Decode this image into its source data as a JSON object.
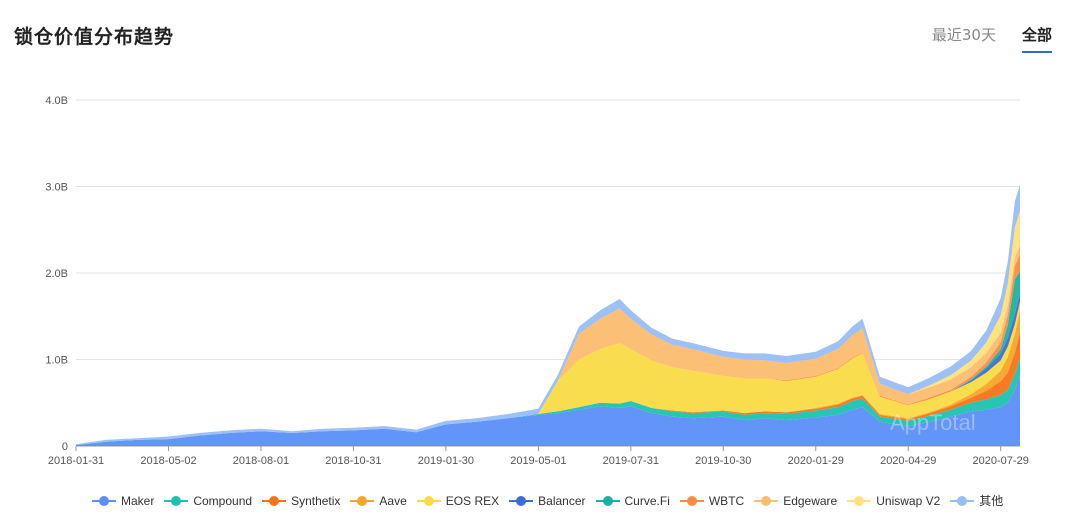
{
  "header": {
    "title": "锁仓价值分布趋势",
    "tabs": [
      {
        "label": "最近30天",
        "active": false
      },
      {
        "label": "全部",
        "active": true
      }
    ]
  },
  "watermark": "AppTotal",
  "chart_data": {
    "type": "area",
    "stacked": true,
    "x": [
      "2018-01-31",
      "2018-03-01",
      "2018-04-01",
      "2018-05-02",
      "2018-06-01",
      "2018-07-01",
      "2018-08-01",
      "2018-09-01",
      "2018-10-01",
      "2018-10-31",
      "2018-12-01",
      "2019-01-01",
      "2019-01-30",
      "2019-03-01",
      "2019-04-01",
      "2019-05-01",
      "2019-05-20",
      "2019-06-10",
      "2019-07-01",
      "2019-07-20",
      "2019-07-31",
      "2019-08-20",
      "2019-09-10",
      "2019-09-30",
      "2019-10-30",
      "2019-11-20",
      "2019-12-10",
      "2019-12-31",
      "2020-01-29",
      "2020-02-20",
      "2020-03-05",
      "2020-03-15",
      "2020-04-01",
      "2020-04-29",
      "2020-05-20",
      "2020-06-10",
      "2020-06-30",
      "2020-07-15",
      "2020-07-29",
      "2020-08-05",
      "2020-08-12",
      "2020-08-17"
    ],
    "series": [
      {
        "name": "Maker",
        "color": "#5b8ff9",
        "values": [
          0.01,
          0.05,
          0.07,
          0.08,
          0.12,
          0.15,
          0.17,
          0.15,
          0.17,
          0.18,
          0.2,
          0.16,
          0.25,
          0.28,
          0.32,
          0.36,
          0.38,
          0.42,
          0.46,
          0.44,
          0.46,
          0.38,
          0.34,
          0.32,
          0.34,
          0.3,
          0.32,
          0.3,
          0.33,
          0.36,
          0.42,
          0.45,
          0.28,
          0.23,
          0.28,
          0.34,
          0.4,
          0.42,
          0.45,
          0.5,
          0.65,
          0.82
        ]
      },
      {
        "name": "Compound",
        "color": "#1cc2b0",
        "values": [
          0,
          0,
          0,
          0,
          0,
          0,
          0,
          0,
          0,
          0,
          0,
          0,
          0,
          0,
          0,
          0.01,
          0.02,
          0.03,
          0.04,
          0.05,
          0.06,
          0.06,
          0.06,
          0.06,
          0.06,
          0.06,
          0.06,
          0.07,
          0.08,
          0.09,
          0.1,
          0.1,
          0.06,
          0.06,
          0.07,
          0.08,
          0.1,
          0.12,
          0.14,
          0.15,
          0.18,
          0.2
        ]
      },
      {
        "name": "Synthetix",
        "color": "#f97316",
        "values": [
          0,
          0,
          0,
          0,
          0,
          0,
          0,
          0,
          0,
          0,
          0,
          0,
          0,
          0,
          0,
          0,
          0,
          0,
          0,
          0,
          0,
          0,
          0.01,
          0.01,
          0.01,
          0.02,
          0.02,
          0.02,
          0.02,
          0.03,
          0.03,
          0.03,
          0.02,
          0.02,
          0.03,
          0.04,
          0.06,
          0.1,
          0.16,
          0.2,
          0.25,
          0.3
        ]
      },
      {
        "name": "Aave",
        "color": "#f7a526",
        "values": [
          0,
          0,
          0,
          0,
          0,
          0,
          0,
          0,
          0,
          0,
          0,
          0,
          0,
          0,
          0,
          0,
          0,
          0,
          0,
          0,
          0,
          0,
          0,
          0,
          0,
          0,
          0,
          0,
          0.01,
          0.01,
          0.01,
          0.01,
          0.01,
          0.01,
          0.01,
          0.02,
          0.04,
          0.08,
          0.12,
          0.18,
          0.22,
          0.25
        ]
      },
      {
        "name": "EOS REX",
        "color": "#fadb45",
        "values": [
          0,
          0,
          0,
          0,
          0,
          0,
          0,
          0,
          0,
          0,
          0,
          0,
          0,
          0,
          0,
          0,
          0.35,
          0.55,
          0.62,
          0.7,
          0.6,
          0.55,
          0.5,
          0.48,
          0.4,
          0.4,
          0.38,
          0.36,
          0.36,
          0.4,
          0.45,
          0.48,
          0.2,
          0.15,
          0.15,
          0.15,
          0.14,
          0.13,
          0.12,
          0.12,
          0.11,
          0.1
        ]
      },
      {
        "name": "Balancer",
        "color": "#3b6fd1",
        "values": [
          0,
          0,
          0,
          0,
          0,
          0,
          0,
          0,
          0,
          0,
          0,
          0,
          0,
          0,
          0,
          0,
          0,
          0,
          0,
          0,
          0,
          0,
          0,
          0,
          0,
          0,
          0,
          0,
          0,
          0,
          0,
          0,
          0,
          0,
          0,
          0,
          0.02,
          0.05,
          0.08,
          0.1,
          0.12,
          0.1
        ]
      },
      {
        "name": "Curve.Fi",
        "color": "#19b3a0",
        "values": [
          0,
          0,
          0,
          0,
          0,
          0,
          0,
          0,
          0,
          0,
          0,
          0,
          0,
          0,
          0,
          0,
          0,
          0,
          0,
          0,
          0,
          0,
          0,
          0,
          0,
          0,
          0,
          0,
          0,
          0,
          0,
          0,
          0,
          0,
          0,
          0,
          0.01,
          0.02,
          0.05,
          0.15,
          0.4,
          0.25
        ]
      },
      {
        "name": "WBTC",
        "color": "#fb8c40",
        "values": [
          0,
          0,
          0,
          0,
          0,
          0,
          0,
          0,
          0,
          0,
          0,
          0,
          0,
          0,
          0,
          0,
          0,
          0,
          0,
          0,
          0,
          0,
          0,
          0,
          0,
          0,
          0,
          0.01,
          0.01,
          0.01,
          0.01,
          0.01,
          0.01,
          0.01,
          0.02,
          0.02,
          0.03,
          0.05,
          0.08,
          0.12,
          0.15,
          0.2
        ]
      },
      {
        "name": "Edgeware",
        "color": "#fbbd6e",
        "values": [
          0,
          0,
          0,
          0,
          0,
          0,
          0,
          0,
          0,
          0,
          0,
          0,
          0,
          0,
          0,
          0,
          0,
          0.3,
          0.35,
          0.4,
          0.35,
          0.3,
          0.26,
          0.25,
          0.22,
          0.22,
          0.21,
          0.2,
          0.2,
          0.22,
          0.26,
          0.28,
          0.14,
          0.12,
          0.12,
          0.12,
          0.11,
          0.11,
          0.11,
          0.11,
          0.1,
          0.1
        ]
      },
      {
        "name": "Uniswap V2",
        "color": "#fde17a",
        "values": [
          0,
          0,
          0,
          0,
          0,
          0,
          0,
          0,
          0,
          0,
          0,
          0,
          0,
          0,
          0,
          0,
          0,
          0,
          0,
          0,
          0,
          0,
          0,
          0,
          0,
          0,
          0,
          0,
          0,
          0,
          0,
          0,
          0,
          0,
          0.02,
          0.05,
          0.08,
          0.12,
          0.2,
          0.25,
          0.35,
          0.4
        ]
      },
      {
        "name": "其他",
        "color": "#98bdf5",
        "values": [
          0.01,
          0.02,
          0.02,
          0.03,
          0.03,
          0.03,
          0.03,
          0.02,
          0.03,
          0.03,
          0.03,
          0.03,
          0.04,
          0.04,
          0.05,
          0.06,
          0.07,
          0.08,
          0.1,
          0.11,
          0.1,
          0.08,
          0.07,
          0.07,
          0.07,
          0.07,
          0.08,
          0.08,
          0.08,
          0.09,
          0.1,
          0.11,
          0.08,
          0.08,
          0.09,
          0.1,
          0.11,
          0.14,
          0.2,
          0.25,
          0.3,
          0.3
        ]
      }
    ],
    "xticks": [
      "2018-01-31",
      "2018-05-02",
      "2018-08-01",
      "2018-10-31",
      "2019-01-30",
      "2019-05-01",
      "2019-07-31",
      "2019-10-30",
      "2020-01-29",
      "2020-04-29",
      "2020-07-29"
    ],
    "yticks": [
      {
        "value": 0,
        "label": "0"
      },
      {
        "value": 1,
        "label": "1.0B"
      },
      {
        "value": 2,
        "label": "2.0B"
      },
      {
        "value": 3,
        "label": "3.0B"
      },
      {
        "value": 4,
        "label": "4.0B"
      }
    ],
    "ylim": [
      0,
      4
    ],
    "grid": true,
    "legend_position": "bottom"
  }
}
